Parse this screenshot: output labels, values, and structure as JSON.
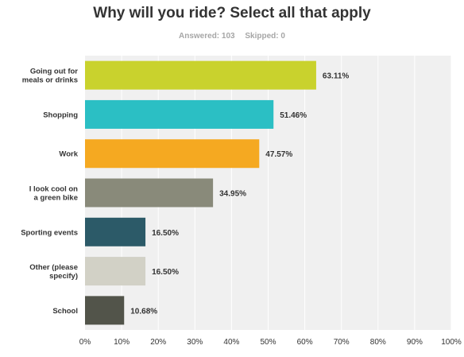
{
  "meta": {
    "answered": "Answered: 103",
    "skipped": "Skipped: 0"
  },
  "chart_data": {
    "type": "bar",
    "orientation": "horizontal",
    "title": "Why will you ride? Select all that apply",
    "categories": [
      [
        "Going out for",
        "meals or drinks"
      ],
      [
        "Shopping"
      ],
      [
        "Work"
      ],
      [
        "I look cool on",
        "a green bike"
      ],
      [
        "Sporting events"
      ],
      [
        "Other (please",
        "specify)"
      ],
      [
        "School"
      ]
    ],
    "values": [
      63.11,
      51.46,
      47.57,
      34.95,
      16.5,
      16.5,
      10.68
    ],
    "value_labels": [
      "63.11%",
      "51.46%",
      "47.57%",
      "34.95%",
      "16.50%",
      "16.50%",
      "10.68%"
    ],
    "colors": [
      "#c9d22d",
      "#2bbfc4",
      "#f5a921",
      "#898a7a",
      "#2c5a68",
      "#d2d1c6",
      "#52544a"
    ],
    "xlim": [
      0,
      100
    ],
    "xticks": [
      "0%",
      "10%",
      "20%",
      "30%",
      "40%",
      "50%",
      "60%",
      "70%",
      "80%",
      "90%",
      "100%"
    ],
    "grid": true,
    "plot_background": "#f0f0f0"
  }
}
